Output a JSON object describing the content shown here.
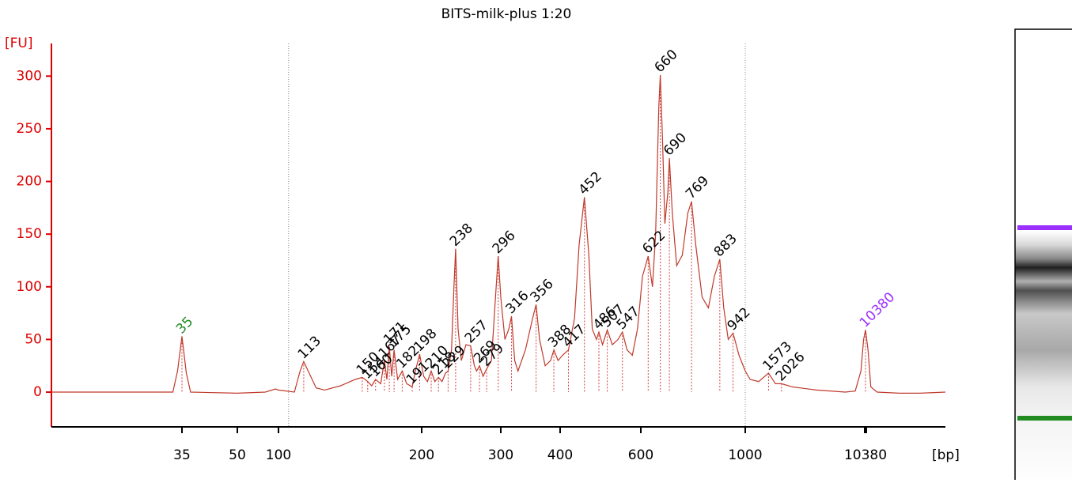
{
  "chart_data": {
    "type": "line",
    "title": "BITS-milk-plus 1:20",
    "y_label": "[FU]",
    "x_label": "[bp]",
    "ylim": [
      -33,
      331
    ],
    "yticks": [
      0,
      50,
      100,
      150,
      200,
      250,
      300
    ],
    "xlim": [
      15,
      49000
    ],
    "xticks": [
      35,
      50,
      100,
      200,
      300,
      400,
      600,
      1000,
      10380
    ],
    "axis_color": "#dd0000",
    "region_bounds": [
      105,
      1000
    ],
    "x": [
      15,
      25,
      33,
      34,
      35,
      36,
      37,
      50,
      80,
      95,
      100,
      108,
      111,
      113,
      116,
      120,
      125,
      135,
      145,
      150,
      154,
      157,
      160,
      164,
      167,
      169,
      171,
      173,
      175,
      178,
      182,
      186,
      191,
      194,
      198,
      202,
      206,
      210,
      214,
      218,
      222,
      226,
      229,
      233,
      236,
      238,
      241,
      245,
      251,
      257,
      262,
      265,
      269,
      274,
      279,
      286,
      292,
      296,
      300,
      306,
      312,
      316,
      321,
      326,
      338,
      350,
      356,
      362,
      372,
      382,
      388,
      396,
      405,
      417,
      430,
      440,
      452,
      462,
      470,
      480,
      486,
      495,
      507,
      520,
      535,
      547,
      560,
      575,
      590,
      605,
      622,
      635,
      645,
      655,
      660,
      667,
      675,
      685,
      690,
      700,
      715,
      735,
      755,
      769,
      785,
      810,
      835,
      860,
      883,
      900,
      920,
      942,
      970,
      1000,
      1100,
      1300,
      1573,
      1800,
      2026,
      2500,
      4000,
      7000,
      8500,
      9500,
      10000,
      10380,
      10900,
      11500,
      13000,
      20000,
      30000,
      49000
    ],
    "series": [
      {
        "color": "#c0392b",
        "values": [
          0,
          0,
          0,
          20,
          53,
          18,
          0,
          -1,
          0,
          3,
          2,
          0,
          20,
          29,
          18,
          4,
          2,
          6,
          12,
          14,
          10,
          6,
          12,
          8,
          30,
          12,
          43,
          15,
          40,
          12,
          20,
          8,
          5,
          20,
          36,
          15,
          10,
          20,
          10,
          14,
          10,
          18,
          20,
          40,
          100,
          136,
          60,
          30,
          45,
          44,
          25,
          20,
          25,
          15,
          22,
          30,
          90,
          129,
          90,
          50,
          60,
          72,
          30,
          20,
          40,
          70,
          83,
          50,
          25,
          30,
          40,
          30,
          35,
          40,
          70,
          140,
          185,
          130,
          60,
          50,
          57,
          45,
          59,
          45,
          50,
          57,
          40,
          35,
          60,
          110,
          129,
          100,
          150,
          270,
          301,
          240,
          160,
          190,
          222,
          170,
          120,
          130,
          170,
          181,
          140,
          90,
          80,
          110,
          126,
          80,
          50,
          56,
          35,
          20,
          12,
          10,
          18,
          8,
          8,
          5,
          2,
          0,
          1,
          20,
          50,
          59,
          40,
          5,
          0,
          -1,
          -1,
          0
        ]
      }
    ],
    "peaks": {
      "x": [
        35,
        113,
        150,
        154,
        160,
        167,
        171,
        175,
        182,
        191,
        198,
        210,
        218,
        229,
        238,
        257,
        269,
        279,
        296,
        316,
        356,
        388,
        417,
        452,
        486,
        507,
        547,
        622,
        660,
        690,
        769,
        883,
        942,
        1573,
        2026,
        10380
      ],
      "values": [
        53,
        29,
        14,
        10,
        12,
        30,
        43,
        40,
        20,
        5,
        36,
        20,
        14,
        20,
        136,
        44,
        25,
        22,
        129,
        72,
        83,
        40,
        40,
        185,
        57,
        59,
        57,
        129,
        301,
        222,
        181,
        126,
        56,
        18,
        8,
        59
      ],
      "label_colors": [
        "#228b22",
        "#000000",
        "#000000",
        "#000000",
        "#000000",
        "#000000",
        "#000000",
        "#000000",
        "#000000",
        "#000000",
        "#000000",
        "#000000",
        "#000000",
        "#000000",
        "#000000",
        "#000000",
        "#000000",
        "#000000",
        "#000000",
        "#000000",
        "#000000",
        "#000000",
        "#000000",
        "#000000",
        "#000000",
        "#000000",
        "#000000",
        "#000000",
        "#000000",
        "#000000",
        "#000000",
        "#000000",
        "#000000",
        "#000000",
        "#000000",
        "#9b30ff"
      ]
    }
  }
}
